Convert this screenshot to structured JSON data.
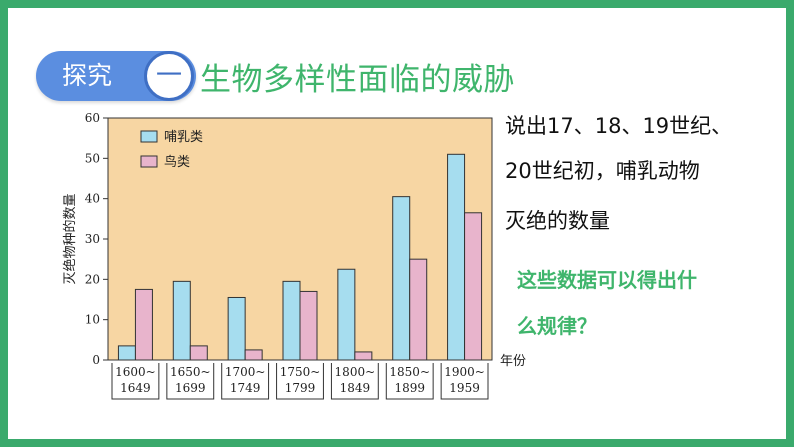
{
  "badge": {
    "label": "探究",
    "number": "一"
  },
  "title": "生物多样性面临的威胁",
  "question": {
    "lines": [
      "说出17、18、19世纪、",
      "20世纪初，哺乳动物",
      "灭绝的数量"
    ]
  },
  "prompt": {
    "lines": [
      "这些数据可以得出什",
      "么规律？"
    ]
  },
  "colors": {
    "frame": "#3aaa6c",
    "badge": "#5b8ee0",
    "title_green": "#3fb56c",
    "plot_bg": "#f7d6a3",
    "mammal": "#a6ddef",
    "bird": "#e8b4cc"
  },
  "chart_data": {
    "type": "bar",
    "ylabel": "灭绝物种的数量",
    "xlabel": "年份",
    "ylim": [
      0,
      60
    ],
    "yticks": [
      "0",
      "10",
      "20",
      "30",
      "40",
      "50",
      "60"
    ],
    "categories": [
      [
        "1600~",
        "1649"
      ],
      [
        "1650~",
        "1699"
      ],
      [
        "1700~",
        "1749"
      ],
      [
        "1750~",
        "1799"
      ],
      [
        "1800~",
        "1849"
      ],
      [
        "1850~",
        "1899"
      ],
      [
        "1900~",
        "1959"
      ]
    ],
    "series": [
      {
        "name": "哺乳类",
        "color": "#a6ddef",
        "values": [
          3.5,
          19.5,
          15.5,
          19.5,
          22.5,
          40.5,
          51
        ]
      },
      {
        "name": "鸟类",
        "color": "#e8b4cc",
        "values": [
          17.5,
          3.5,
          2.5,
          17,
          2,
          25,
          36.5
        ]
      }
    ],
    "legend_position": "top-left",
    "grid": false
  }
}
